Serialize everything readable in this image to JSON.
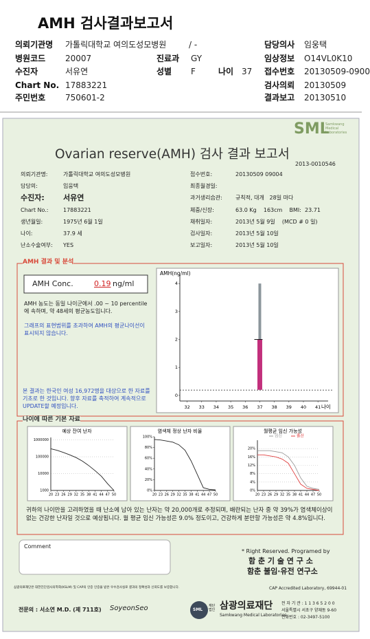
{
  "header": {
    "title": "AMH 검사결과보고서",
    "institution": {
      "label": "의뢰기관명",
      "value": "가톨릭대학교 여의도성모병원",
      "dept": "/ -"
    },
    "hospital_code": {
      "label": "병원코드",
      "value": "20007"
    },
    "department": {
      "label": "진료과",
      "value": "GY"
    },
    "patient": {
      "label": "수진자",
      "value": "서유연"
    },
    "sex": {
      "label": "성별",
      "value": "F"
    },
    "age": {
      "label": "나이",
      "value": "37"
    },
    "chart_no": {
      "label": "Chart No.",
      "value": "17883221"
    },
    "resident_no": {
      "label": "주민번호",
      "value": "750601-2"
    },
    "doctor": {
      "label": "담당의사",
      "value": "임웅택"
    },
    "clinical_info": {
      "label": "임상정보",
      "value": "O14VL0K10"
    },
    "receipt_no": {
      "label": "접수번호",
      "value": "20130509-0900"
    },
    "request_date": {
      "label": "검사의뢰",
      "value": "20130509"
    },
    "report_date": {
      "label": "결과보고",
      "value": "20130510"
    }
  },
  "report": {
    "logo": "SML",
    "logo_sub": "Samkwang Medical Laboratories",
    "title": "Ovarian reserve(AMH) 검사 결과 보고서",
    "number": "2013-0010546",
    "info_left": [
      {
        "label": "의뢰기관명:",
        "value": "가톨릭대학교 여의도성모병원"
      },
      {
        "label": "담당의:",
        "value": "임웅택"
      },
      {
        "label": "수진자:",
        "value": "서유연"
      },
      {
        "label": "Chart No.:",
        "value": "17883221"
      },
      {
        "label": "생년월일:",
        "value": "1975년 6월 1일"
      },
      {
        "label": "나이:",
        "value": "37.9 세"
      },
      {
        "label": "난소수술여부:",
        "value": "YES"
      }
    ],
    "info_right": [
      {
        "label": "접수번호:",
        "value": "20130509 09004"
      },
      {
        "label": "최종월경일:"
      },
      {
        "label": "과거생리습관:",
        "value": "규칙적, 대개   28일 마다"
      },
      {
        "label": "체중/신장:",
        "value": "63.0 Kg    163cm    BMI:  23.71"
      },
      {
        "label": "채취일자:",
        "value": "2013년 5월 9일    (MCD # 0 일)"
      },
      {
        "label": "검사일자:",
        "value": "2013년 5월 10일"
      },
      {
        "label": "보고일자:",
        "value": "2013년 5월 10일"
      }
    ],
    "analysis_title": "AMH 결과 및 분석",
    "amh": {
      "label": "AMH Conc.",
      "value": 0.19,
      "unit": "ng/ml"
    },
    "analysis_text": "AMH 농도는 동일 나이군에서 .00 ~ 10 percentile에 속하며, 약 48세의 평균농도입니다.",
    "analysis_note": "그래프의 표현범위를 초과하여 AMH의 평균나이선이 표시되지 않습니다.",
    "analysis_source": "본 결과는 한국인 여성 16,972명을 대상으로 한 자료를 기초로 한 것입니다. 향후 자료를 축적하여 계속적으로 UPDATE할 예정입니다.",
    "basic_title": "나이에 따른 기본 자료",
    "summary": "귀하의 나이만을 고려하였을 때 난소에 남아 있는 난자는 약 20,000개로 추정되며, 배란되는 난자 중 약 39%가 염색체이상이 없는 건강한 난자일 것으로 예상됩니다. 월 평균 임신 가능성은 9.0% 정도이고, 건강하게 분만할 가능성은 약 4.8%입니다.",
    "comment_label": "Comment",
    "rights": "* Right Reserved. Programed by",
    "lab1": "함 춘 기 술 연 구 소",
    "lab2": "함춘 불임·유전 연구소",
    "cert_note": "삼광의료재단은 대한진단검사의학회(KSLM) 및 CAP의 인증 인증을 받은 우수검사실로 결과의 정확성과 신뢰도를 보증합니다.",
    "cap": "CAP Accredited Laboratory, 69944-01",
    "specialist": "전문의 : 서소연 M.D. (제 711호)",
    "signature": "SoyeonSeo",
    "foundation_prefix": "재단법인",
    "foundation": "삼광의료재단",
    "foundation_en": "Samkwang Medical Laboratories",
    "address": [
      "전 자 기 관 : 1 1 3 6 5 2 0 0",
      "서울특별시 서초구 양재동 9-60",
      "전화번호 : 02-3497-5100"
    ]
  },
  "chart_data": [
    {
      "type": "range",
      "title": "AMH(ng/ml)",
      "x_label": "나이",
      "xlim": [
        31.5,
        41.7
      ],
      "xticks": [
        32,
        33,
        34,
        35,
        36,
        37,
        38,
        39,
        40,
        41
      ],
      "ylim": [
        -0.2,
        4.3
      ],
      "yticks": [
        0,
        1,
        2,
        3,
        4
      ],
      "ranges": [
        {
          "x": 37,
          "low": 2,
          "high": 4,
          "color": "#8c969c"
        },
        {
          "x": 37,
          "low": 0.2,
          "high": 2,
          "color": "#c2307c"
        }
      ],
      "ref_line": 0.19
    },
    {
      "type": "line",
      "title": "예상 잔여 난자",
      "log_y": true,
      "grid": true,
      "xlim": [
        20,
        50
      ],
      "xticks": [
        20,
        23,
        26,
        29,
        32,
        35,
        38,
        41,
        44,
        47,
        50
      ],
      "ylim": [
        1000,
        1400000
      ],
      "yticks": [
        1000,
        10000,
        100000,
        1000000
      ],
      "x": [
        20,
        23,
        26,
        29,
        32,
        35,
        38,
        41,
        44,
        47,
        50
      ],
      "series": [
        {
          "color": "#222222",
          "values": [
            300000,
            240000,
            180000,
            130000,
            90000,
            55000,
            30000,
            15000,
            7000,
            2500,
            1000
          ]
        }
      ]
    },
    {
      "type": "line",
      "title": "염색체 정상 난자 비율",
      "xlim": [
        20,
        50
      ],
      "xticks": [
        20,
        23,
        26,
        29,
        32,
        35,
        38,
        41,
        44,
        47,
        50
      ],
      "ylim": [
        0,
        100
      ],
      "yticks": [
        {
          "value": 0,
          "label": "0%"
        },
        {
          "value": 20,
          "label": "20%"
        },
        {
          "value": 40,
          "label": "40%"
        },
        {
          "value": 60,
          "label": "60%"
        },
        {
          "value": 80,
          "label": "80%"
        },
        {
          "value": 100,
          "label": "100%"
        }
      ],
      "x": [
        20,
        23,
        26,
        29,
        32,
        35,
        38,
        41,
        44,
        47,
        50
      ],
      "series": [
        {
          "color": "#222222",
          "values": [
            95,
            94,
            92,
            90,
            85,
            75,
            55,
            30,
            5,
            2,
            1
          ]
        }
      ]
    },
    {
      "type": "line",
      "title": "월평균 임신 가능성",
      "grid": true,
      "xlim": [
        20,
        50
      ],
      "xticks": [
        20,
        23,
        26,
        29,
        32,
        35,
        38,
        41,
        44,
        47,
        50
      ],
      "ylim": [
        0,
        24
      ],
      "yticks": [
        {
          "value": 0,
          "label": "0%"
        },
        {
          "value": 4,
          "label": "4%"
        },
        {
          "value": 8,
          "label": "8%"
        },
        {
          "value": 12,
          "label": "12%"
        },
        {
          "value": 16,
          "label": "16%"
        },
        {
          "value": 20,
          "label": "20%"
        }
      ],
      "x": [
        20,
        23,
        26,
        29,
        32,
        35,
        38,
        41,
        44,
        47,
        50
      ],
      "series": [
        {
          "name": "임신",
          "color": "#9a9a9a",
          "values": [
            19,
            19,
            19,
            18.5,
            18,
            16,
            12,
            6,
            2,
            1,
            0.5
          ]
        },
        {
          "name": "출산",
          "color": "#e04040",
          "values": [
            17,
            17,
            16.5,
            16,
            15,
            13,
            8,
            3,
            1,
            0.5,
            0
          ]
        }
      ]
    }
  ]
}
